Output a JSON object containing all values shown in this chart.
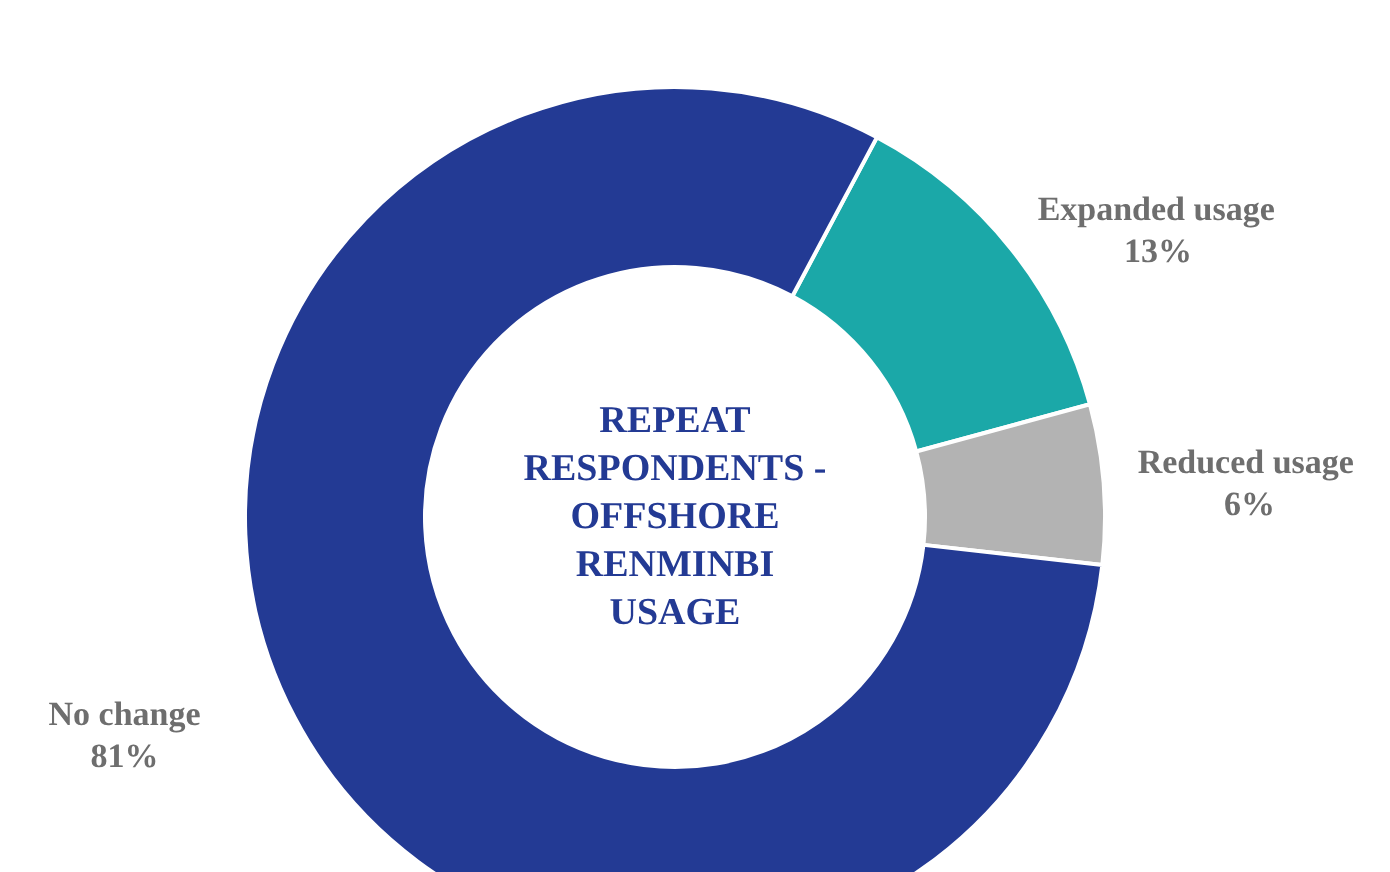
{
  "chart_data": {
    "type": "donut",
    "title": "REPEAT RESPONDENTS - OFFSHORE RENMINBI USAGE",
    "categories": [
      "No change",
      "Expanded usage",
      "Reduced usage"
    ],
    "values": [
      81,
      13,
      6
    ],
    "colors": [
      "#233a94",
      "#1ba8a8",
      "#b3b3b3"
    ],
    "value_labels": [
      "81%",
      "13%",
      "6%"
    ]
  }
}
